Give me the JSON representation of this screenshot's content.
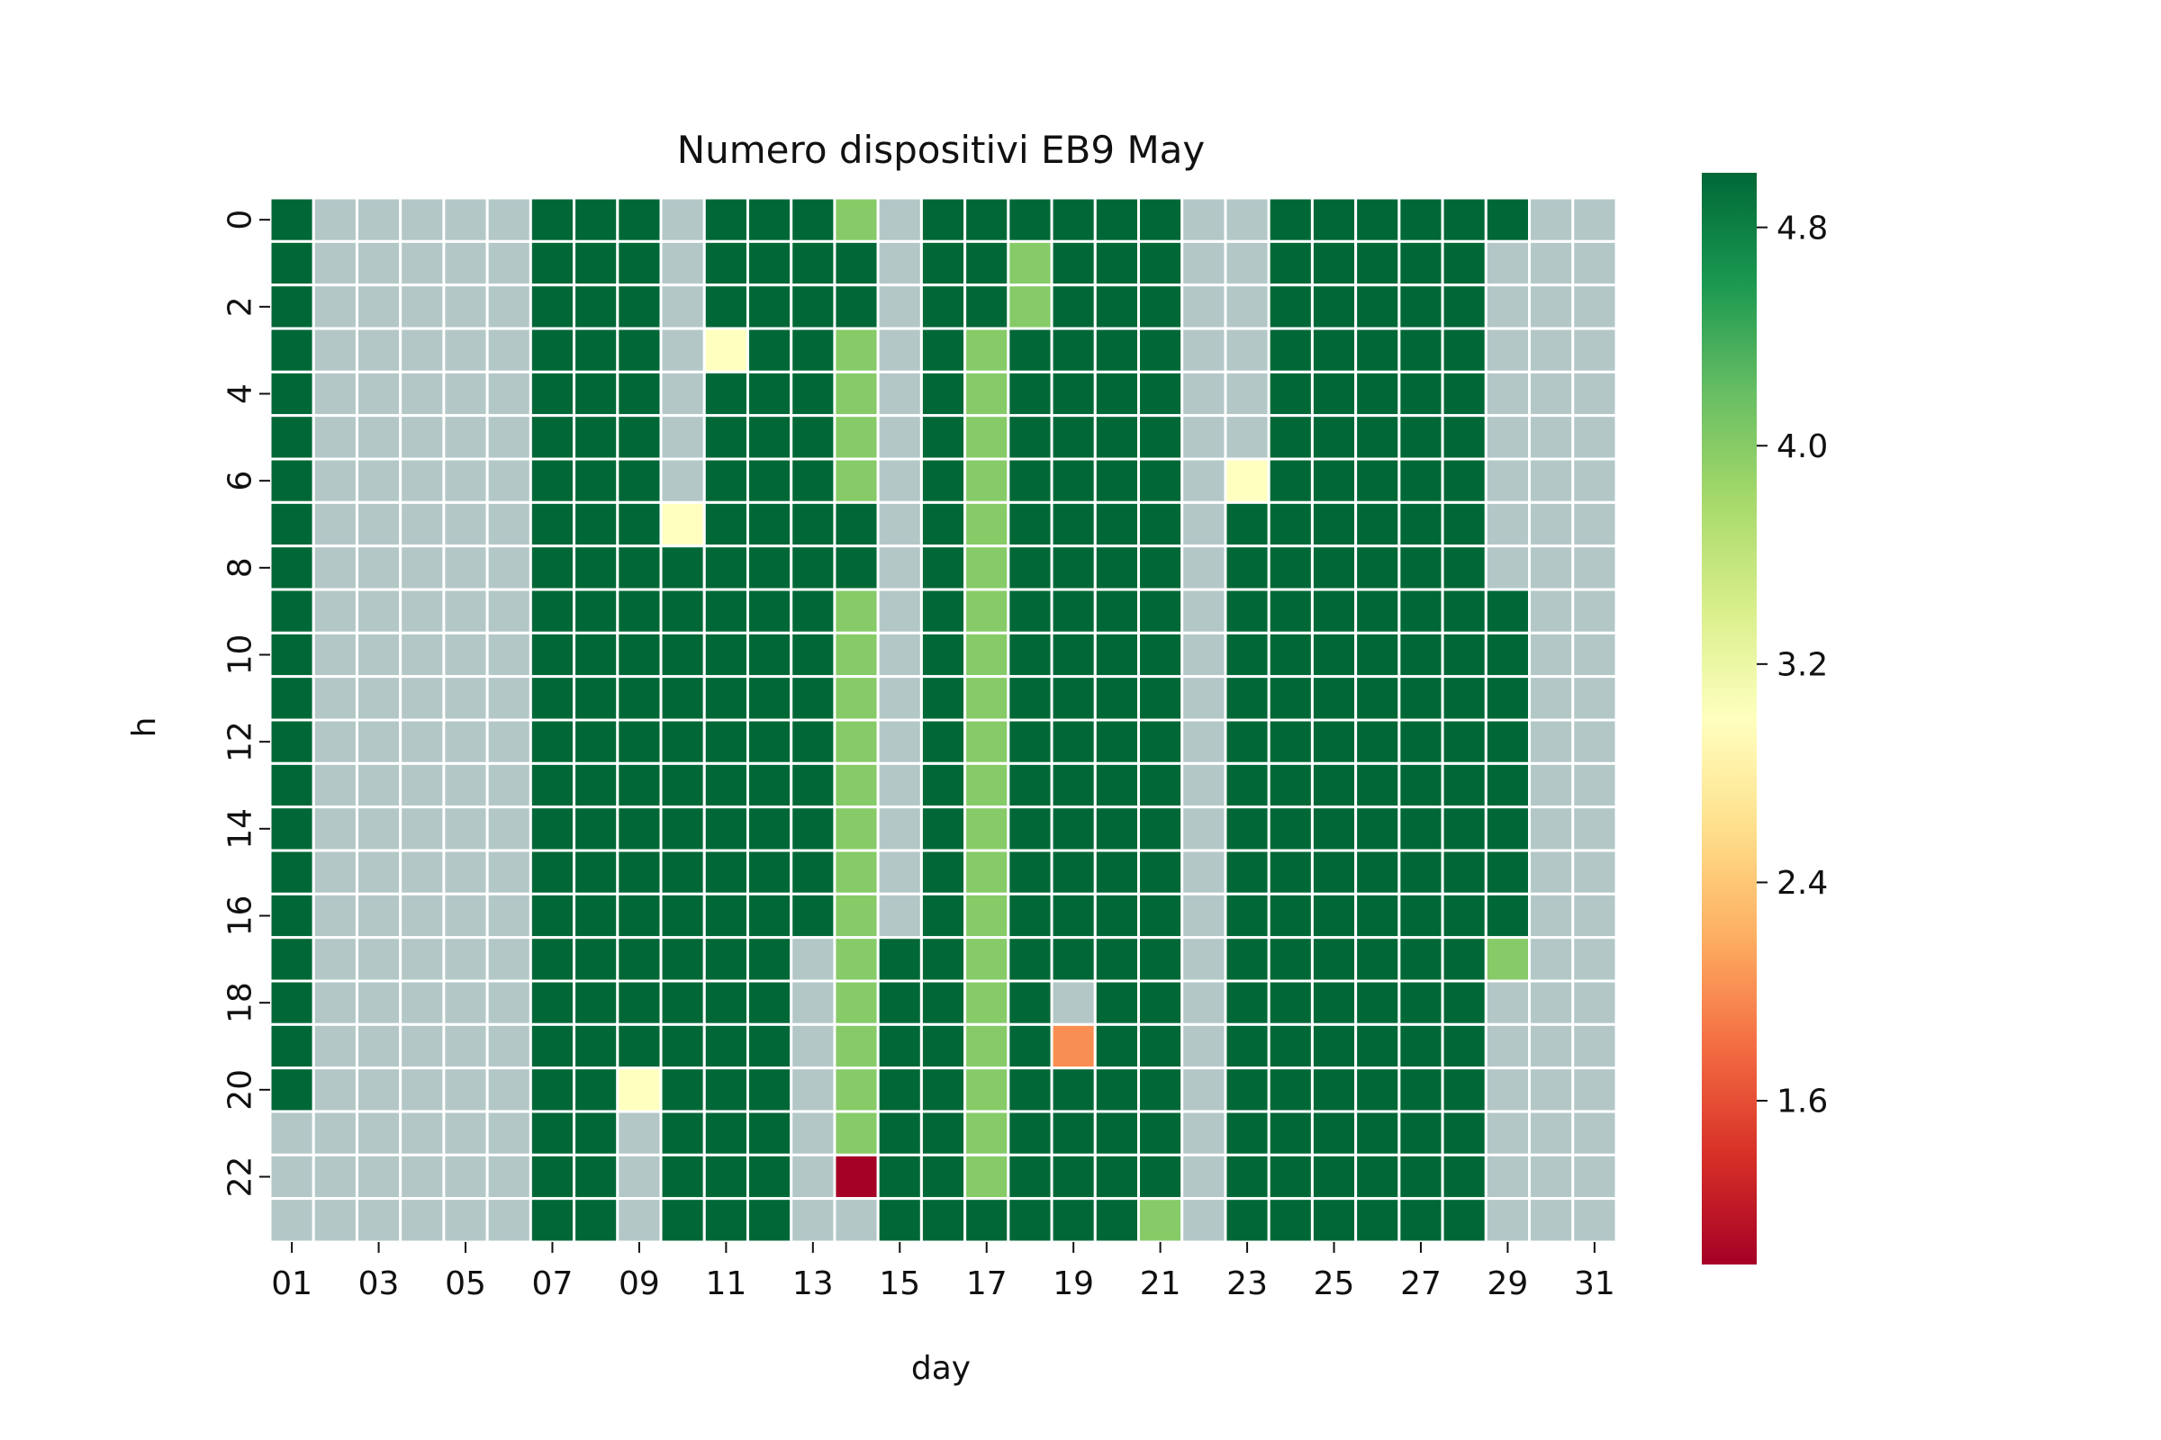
{
  "chart_data": {
    "type": "heatmap",
    "title": "Numero dispositivi EB9 May",
    "xlabel": "day",
    "ylabel": "h",
    "x_categories": [
      "01",
      "02",
      "03",
      "04",
      "05",
      "06",
      "07",
      "08",
      "09",
      "10",
      "11",
      "12",
      "13",
      "14",
      "15",
      "16",
      "17",
      "18",
      "19",
      "20",
      "21",
      "22",
      "23",
      "24",
      "25",
      "26",
      "27",
      "28",
      "29",
      "30",
      "31"
    ],
    "x_tick_labels": [
      "01",
      "03",
      "05",
      "07",
      "09",
      "11",
      "13",
      "15",
      "17",
      "19",
      "21",
      "23",
      "25",
      "27",
      "29",
      "31"
    ],
    "y_categories": [
      "0",
      "1",
      "2",
      "3",
      "4",
      "5",
      "6",
      "7",
      "8",
      "9",
      "10",
      "11",
      "12",
      "13",
      "14",
      "15",
      "16",
      "17",
      "18",
      "19",
      "20",
      "21",
      "22",
      "23"
    ],
    "y_tick_labels": [
      "0",
      "2",
      "4",
      "6",
      "8",
      "10",
      "12",
      "14",
      "16",
      "18",
      "20",
      "22"
    ],
    "colorbar": {
      "min": 1,
      "max": 5,
      "ticks": [
        1.6,
        2.4,
        3.2,
        4.0,
        4.8
      ],
      "tick_labels": [
        "1.6",
        "2.4",
        "3.2",
        "4.0",
        "4.8"
      ],
      "colormap": "RdYlGn"
    },
    "missing_color": "#b3c7c7",
    "values": [
      [
        5,
        null,
        null,
        null,
        null,
        null,
        5,
        5,
        5,
        null,
        5,
        5,
        5,
        4,
        null,
        5,
        5,
        5,
        5,
        5,
        5,
        null,
        null,
        5,
        5,
        5,
        5,
        5,
        5,
        null,
        null
      ],
      [
        5,
        null,
        null,
        null,
        null,
        null,
        5,
        5,
        5,
        null,
        5,
        5,
        5,
        5,
        null,
        5,
        5,
        4,
        5,
        5,
        5,
        null,
        null,
        5,
        5,
        5,
        5,
        5,
        null,
        null,
        null
      ],
      [
        5,
        null,
        null,
        null,
        null,
        null,
        5,
        5,
        5,
        null,
        5,
        5,
        5,
        5,
        null,
        5,
        5,
        4,
        5,
        5,
        5,
        null,
        null,
        5,
        5,
        5,
        5,
        5,
        null,
        null,
        null
      ],
      [
        5,
        null,
        null,
        null,
        null,
        null,
        5,
        5,
        5,
        null,
        3,
        5,
        5,
        4,
        null,
        5,
        4,
        5,
        5,
        5,
        5,
        null,
        null,
        5,
        5,
        5,
        5,
        5,
        null,
        null,
        null
      ],
      [
        5,
        null,
        null,
        null,
        null,
        null,
        5,
        5,
        5,
        null,
        5,
        5,
        5,
        4,
        null,
        5,
        4,
        5,
        5,
        5,
        5,
        null,
        null,
        5,
        5,
        5,
        5,
        5,
        null,
        null,
        null
      ],
      [
        5,
        null,
        null,
        null,
        null,
        null,
        5,
        5,
        5,
        null,
        5,
        5,
        5,
        4,
        null,
        5,
        4,
        5,
        5,
        5,
        5,
        null,
        null,
        5,
        5,
        5,
        5,
        5,
        null,
        null,
        null
      ],
      [
        5,
        null,
        null,
        null,
        null,
        null,
        5,
        5,
        5,
        null,
        5,
        5,
        5,
        4,
        null,
        5,
        4,
        5,
        5,
        5,
        5,
        null,
        3,
        5,
        5,
        5,
        5,
        5,
        null,
        null,
        null
      ],
      [
        5,
        null,
        null,
        null,
        null,
        null,
        5,
        5,
        5,
        3,
        5,
        5,
        5,
        5,
        null,
        5,
        4,
        5,
        5,
        5,
        5,
        null,
        5,
        5,
        5,
        5,
        5,
        5,
        null,
        null,
        null
      ],
      [
        5,
        null,
        null,
        null,
        null,
        null,
        5,
        5,
        5,
        5,
        5,
        5,
        5,
        5,
        null,
        5,
        4,
        5,
        5,
        5,
        5,
        null,
        5,
        5,
        5,
        5,
        5,
        5,
        null,
        null,
        null
      ],
      [
        5,
        null,
        null,
        null,
        null,
        null,
        5,
        5,
        5,
        5,
        5,
        5,
        5,
        4,
        null,
        5,
        4,
        5,
        5,
        5,
        5,
        null,
        5,
        5,
        5,
        5,
        5,
        5,
        5,
        null,
        null
      ],
      [
        5,
        null,
        null,
        null,
        null,
        null,
        5,
        5,
        5,
        5,
        5,
        5,
        5,
        4,
        null,
        5,
        4,
        5,
        5,
        5,
        5,
        null,
        5,
        5,
        5,
        5,
        5,
        5,
        5,
        null,
        null
      ],
      [
        5,
        null,
        null,
        null,
        null,
        null,
        5,
        5,
        5,
        5,
        5,
        5,
        5,
        4,
        null,
        5,
        4,
        5,
        5,
        5,
        5,
        null,
        5,
        5,
        5,
        5,
        5,
        5,
        5,
        null,
        null
      ],
      [
        5,
        null,
        null,
        null,
        null,
        null,
        5,
        5,
        5,
        5,
        5,
        5,
        5,
        4,
        null,
        5,
        4,
        5,
        5,
        5,
        5,
        null,
        5,
        5,
        5,
        5,
        5,
        5,
        5,
        null,
        null
      ],
      [
        5,
        null,
        null,
        null,
        null,
        null,
        5,
        5,
        5,
        5,
        5,
        5,
        5,
        4,
        null,
        5,
        4,
        5,
        5,
        5,
        5,
        null,
        5,
        5,
        5,
        5,
        5,
        5,
        5,
        null,
        null
      ],
      [
        5,
        null,
        null,
        null,
        null,
        null,
        5,
        5,
        5,
        5,
        5,
        5,
        5,
        4,
        null,
        5,
        4,
        5,
        5,
        5,
        5,
        null,
        5,
        5,
        5,
        5,
        5,
        5,
        5,
        null,
        null
      ],
      [
        5,
        null,
        null,
        null,
        null,
        null,
        5,
        5,
        5,
        5,
        5,
        5,
        5,
        4,
        null,
        5,
        4,
        5,
        5,
        5,
        5,
        null,
        5,
        5,
        5,
        5,
        5,
        5,
        5,
        null,
        null
      ],
      [
        5,
        null,
        null,
        null,
        null,
        null,
        5,
        5,
        5,
        5,
        5,
        5,
        5,
        4,
        null,
        5,
        4,
        5,
        5,
        5,
        5,
        null,
        5,
        5,
        5,
        5,
        5,
        5,
        5,
        null,
        null
      ],
      [
        5,
        null,
        null,
        null,
        null,
        null,
        5,
        5,
        5,
        5,
        5,
        5,
        null,
        4,
        5,
        5,
        4,
        5,
        5,
        5,
        5,
        null,
        5,
        5,
        5,
        5,
        5,
        5,
        4,
        null,
        null
      ],
      [
        5,
        null,
        null,
        null,
        null,
        null,
        5,
        5,
        5,
        5,
        5,
        5,
        null,
        4,
        5,
        5,
        4,
        5,
        null,
        5,
        5,
        null,
        5,
        5,
        5,
        5,
        5,
        5,
        null,
        null,
        null
      ],
      [
        5,
        null,
        null,
        null,
        null,
        null,
        5,
        5,
        5,
        5,
        5,
        5,
        null,
        4,
        5,
        5,
        4,
        5,
        2,
        5,
        5,
        null,
        5,
        5,
        5,
        5,
        5,
        5,
        null,
        null,
        null
      ],
      [
        5,
        null,
        null,
        null,
        null,
        null,
        5,
        5,
        3,
        5,
        5,
        5,
        null,
        4,
        5,
        5,
        4,
        5,
        5,
        5,
        5,
        null,
        5,
        5,
        5,
        5,
        5,
        5,
        null,
        null,
        null
      ],
      [
        null,
        null,
        null,
        null,
        null,
        null,
        5,
        5,
        null,
        5,
        5,
        5,
        null,
        4,
        5,
        5,
        4,
        5,
        5,
        5,
        5,
        null,
        5,
        5,
        5,
        5,
        5,
        5,
        null,
        null,
        null
      ],
      [
        null,
        null,
        null,
        null,
        null,
        null,
        5,
        5,
        null,
        5,
        5,
        5,
        null,
        1,
        5,
        5,
        4,
        5,
        5,
        5,
        5,
        null,
        5,
        5,
        5,
        5,
        5,
        5,
        null,
        null,
        null
      ],
      [
        null,
        null,
        null,
        null,
        null,
        null,
        5,
        5,
        null,
        5,
        5,
        5,
        null,
        null,
        5,
        5,
        5,
        5,
        5,
        5,
        4,
        null,
        5,
        5,
        5,
        5,
        5,
        5,
        null,
        null,
        null
      ]
    ]
  }
}
